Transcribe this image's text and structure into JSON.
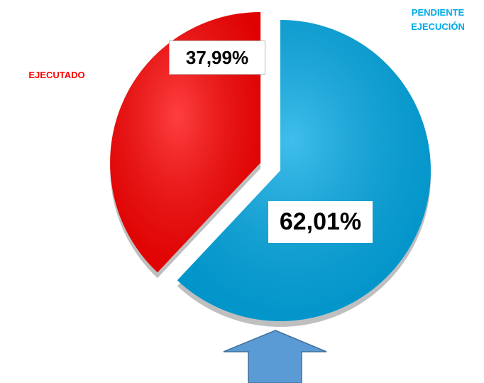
{
  "chart_data": {
    "type": "pie",
    "categories": [
      "EJECUTADO",
      "PENDIENTE EJECUCIÓN"
    ],
    "values": [
      37.99,
      62.01
    ],
    "value_labels": [
      "37,99%",
      "62,01%"
    ],
    "colors": [
      "#ff0000",
      "#00a9e6"
    ]
  }
}
